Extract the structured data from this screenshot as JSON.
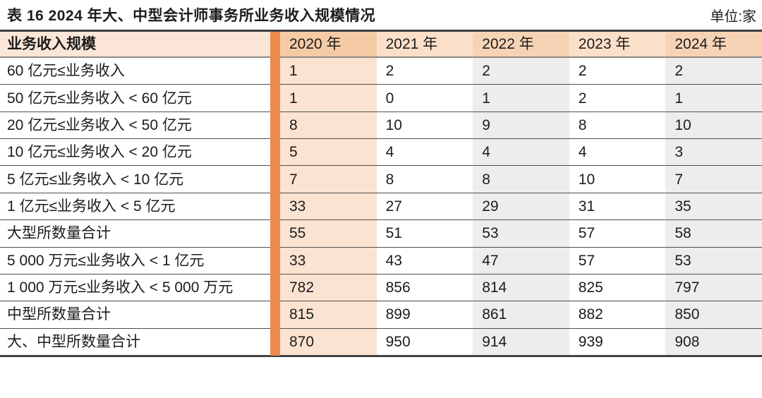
{
  "caption": {
    "title": "表 16 2024 年大、中型会计师事务所业务收入规模情况",
    "unit": "单位:家"
  },
  "table": {
    "headers": [
      "业务收入规模",
      "2020 年",
      "2021 年",
      "2022 年",
      "2023 年",
      "2024 年"
    ],
    "rows": [
      {
        "label": "60 亿元≤业务收入",
        "values": [
          1,
          2,
          2,
          2,
          2
        ]
      },
      {
        "label": "50 亿元≤业务收入 < 60 亿元",
        "values": [
          1,
          0,
          1,
          2,
          1
        ]
      },
      {
        "label": "20 亿元≤业务收入 < 50 亿元",
        "values": [
          8,
          10,
          9,
          8,
          10
        ]
      },
      {
        "label": "10 亿元≤业务收入 < 20 亿元",
        "values": [
          5,
          4,
          4,
          4,
          3
        ]
      },
      {
        "label": "5 亿元≤业务收入 < 10 亿元",
        "values": [
          7,
          8,
          8,
          10,
          7
        ]
      },
      {
        "label": "1 亿元≤业务收入 < 5 亿元",
        "values": [
          33,
          27,
          29,
          31,
          35
        ]
      },
      {
        "label": "大型所数量合计",
        "values": [
          55,
          51,
          53,
          57,
          58
        ]
      },
      {
        "label": "5 000 万元≤业务收入 < 1 亿元",
        "values": [
          33,
          43,
          47,
          57,
          53
        ]
      },
      {
        "label": "1 000 万元≤业务收入 < 5 000 万元",
        "values": [
          782,
          856,
          814,
          825,
          797
        ]
      },
      {
        "label": "中型所数量合计",
        "values": [
          815,
          899,
          861,
          882,
          850
        ]
      },
      {
        "label": "大、中型所数量合计",
        "values": [
          870,
          950,
          914,
          939,
          908
        ]
      }
    ]
  },
  "colors": {
    "divider_orange": "#ec8b4c",
    "header_label_bg": "#fce6d7",
    "header_year_2020_bg": "#f5cba6",
    "header_year_light_bg": "#fbdfc9",
    "header_year_mid_bg": "#f7d3b6",
    "column_2020_bg": "#fbe3d1",
    "column_gray_bg": "#ededed",
    "text": "#1c1c1c"
  }
}
